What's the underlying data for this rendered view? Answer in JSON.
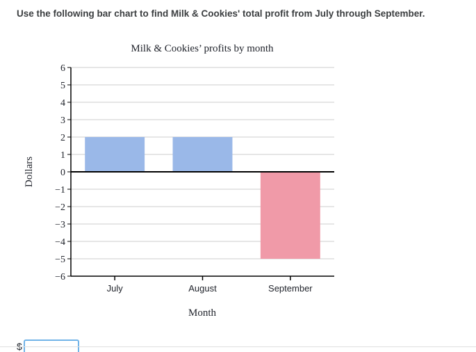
{
  "question": {
    "text": "Use the following bar chart to find Milk & Cookies' total profit from July through September."
  },
  "answer": {
    "currency_symbol": "$",
    "value": "",
    "placeholder": ""
  },
  "chart_data": {
    "type": "bar",
    "title": "Milk & Cookies’ profits by month",
    "xlabel": "Month",
    "ylabel": "Dollars",
    "categories": [
      "July",
      "August",
      "September"
    ],
    "values": [
      2,
      2,
      -5
    ],
    "bar_colors": [
      "#9ab8e8",
      "#9ab8e8",
      "#f09aa8"
    ],
    "ylim": [
      -6,
      6
    ],
    "yticks": [
      {
        "value": 6,
        "label": "6"
      },
      {
        "value": 5,
        "label": "5"
      },
      {
        "value": 4,
        "label": "4"
      },
      {
        "value": 3,
        "label": "3"
      },
      {
        "value": 2,
        "label": "2"
      },
      {
        "value": 1,
        "label": "1"
      },
      {
        "value": 0,
        "label": "0"
      },
      {
        "value": -1,
        "label": "−1"
      },
      {
        "value": -2,
        "label": "−2"
      },
      {
        "value": -3,
        "label": "−3"
      },
      {
        "value": -4,
        "label": "−4"
      },
      {
        "value": -5,
        "label": "−5"
      },
      {
        "value": -6,
        "label": "−6"
      }
    ],
    "grid": true,
    "gridline_color": "#cccccc",
    "axis_color": "#000000"
  }
}
